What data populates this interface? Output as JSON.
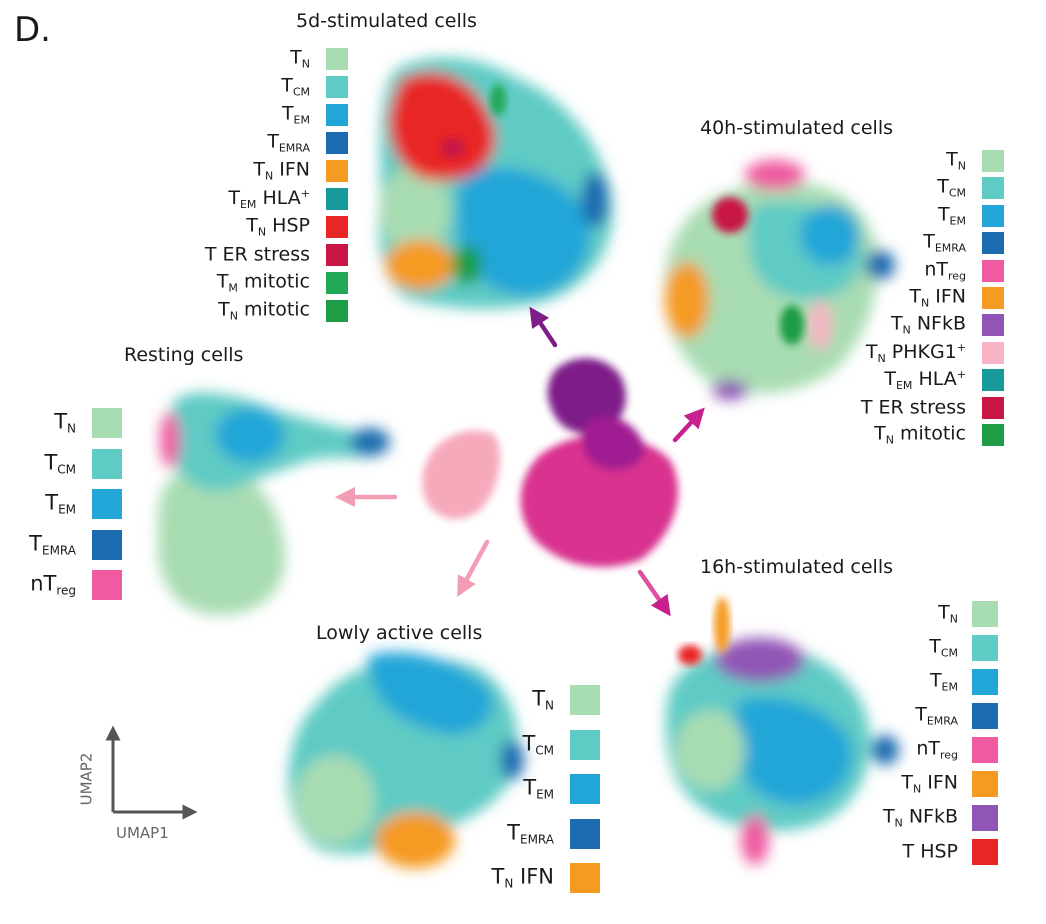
{
  "panel_label": "D.",
  "colors": {
    "TN": "#a8dcb2",
    "TCM": "#5ecbc4",
    "TEM": "#22a6d8",
    "TEMRA": "#1d6cb1",
    "nTreg": "#ef5aa0",
    "TN_IFN": "#f59a23",
    "TEM_HLA": "#179a9c",
    "TN_HSP": "#e82626",
    "ER_stress": "#c81544",
    "TM_mitotic": "#22a958",
    "TN_mitotic": "#1f9c47",
    "TN_NFkB": "#9155b5",
    "TN_PHKG1": "#f7b3c3",
    "center_light": "#f6a9bb",
    "center_mid": "#d9338f",
    "center_dark": "#7e1f88",
    "arrow_pink": "#f29db4",
    "arrow_magenta": "#c8208c",
    "arrow_purple": "#7e1f88",
    "axis": "#555555"
  },
  "panels": {
    "stim5d": {
      "title": "5d-stimulated cells",
      "legend": [
        {
          "base": "T",
          "sub": "N",
          "sup": "",
          "suffix": "",
          "color_key": "TN"
        },
        {
          "base": "T",
          "sub": "CM",
          "sup": "",
          "suffix": "",
          "color_key": "TCM"
        },
        {
          "base": "T",
          "sub": "EM",
          "sup": "",
          "suffix": "",
          "color_key": "TEM"
        },
        {
          "base": "T",
          "sub": "EMRA",
          "sup": "",
          "suffix": "",
          "color_key": "TEMRA"
        },
        {
          "base": "T",
          "sub": "N",
          "sup": "",
          "suffix": " IFN",
          "color_key": "TN_IFN"
        },
        {
          "base": "T",
          "sub": "EM",
          "sup": "+",
          "suffix": " HLA",
          "color_key": "TEM_HLA"
        },
        {
          "base": "T",
          "sub": "N",
          "sup": "",
          "suffix": " HSP",
          "color_key": "TN_HSP"
        },
        {
          "base": "T ER stress",
          "sub": "",
          "sup": "",
          "suffix": "",
          "color_key": "ER_stress"
        },
        {
          "base": "T",
          "sub": "M",
          "sup": "",
          "suffix": " mitotic",
          "color_key": "TM_mitotic"
        },
        {
          "base": "T",
          "sub": "N",
          "sup": "",
          "suffix": " mitotic",
          "color_key": "TN_mitotic"
        }
      ]
    },
    "stim40h": {
      "title": "40h-stimulated cells",
      "legend": [
        {
          "base": "T",
          "sub": "N",
          "sup": "",
          "suffix": "",
          "color_key": "TN"
        },
        {
          "base": "T",
          "sub": "CM",
          "sup": "",
          "suffix": "",
          "color_key": "TCM"
        },
        {
          "base": "T",
          "sub": "EM",
          "sup": "",
          "suffix": "",
          "color_key": "TEM"
        },
        {
          "base": "T",
          "sub": "EMRA",
          "sup": "",
          "suffix": "",
          "color_key": "TEMRA"
        },
        {
          "base": "nT",
          "sub": "reg",
          "sup": "",
          "suffix": "",
          "color_key": "nTreg"
        },
        {
          "base": "T",
          "sub": "N",
          "sup": "",
          "suffix": " IFN",
          "color_key": "TN_IFN"
        },
        {
          "base": "T",
          "sub": "N",
          "sup": "",
          "suffix": " NFkB",
          "color_key": "TN_NFkB"
        },
        {
          "base": "T",
          "sub": "N",
          "sup": "+",
          "suffix": " PHKG1",
          "color_key": "TN_PHKG1"
        },
        {
          "base": "T",
          "sub": "EM",
          "sup": "+",
          "suffix": " HLA",
          "color_key": "TEM_HLA"
        },
        {
          "base": "T ER stress",
          "sub": "",
          "sup": "",
          "suffix": "",
          "color_key": "ER_stress"
        },
        {
          "base": "T",
          "sub": "N",
          "sup": "",
          "suffix": " mitotic",
          "color_key": "TN_mitotic"
        }
      ]
    },
    "resting": {
      "title": "Resting cells",
      "legend": [
        {
          "base": "T",
          "sub": "N",
          "sup": "",
          "suffix": "",
          "color_key": "TN"
        },
        {
          "base": "T",
          "sub": "CM",
          "sup": "",
          "suffix": "",
          "color_key": "TCM"
        },
        {
          "base": "T",
          "sub": "EM",
          "sup": "",
          "suffix": "",
          "color_key": "TEM"
        },
        {
          "base": "T",
          "sub": "EMRA",
          "sup": "",
          "suffix": "",
          "color_key": "TEMRA"
        },
        {
          "base": "nT",
          "sub": "reg",
          "sup": "",
          "suffix": "",
          "color_key": "nTreg"
        }
      ]
    },
    "lowly": {
      "title": "Lowly active cells",
      "legend": [
        {
          "base": "T",
          "sub": "N",
          "sup": "",
          "suffix": "",
          "color_key": "TN"
        },
        {
          "base": "T",
          "sub": "CM",
          "sup": "",
          "suffix": "",
          "color_key": "TCM"
        },
        {
          "base": "T",
          "sub": "EM",
          "sup": "",
          "suffix": "",
          "color_key": "TEM"
        },
        {
          "base": "T",
          "sub": "EMRA",
          "sup": "",
          "suffix": "",
          "color_key": "TEMRA"
        },
        {
          "base": "T",
          "sub": "N",
          "sup": "",
          "suffix": " IFN",
          "color_key": "TN_IFN"
        }
      ]
    },
    "stim16h": {
      "title": "16h-stimulated cells",
      "legend": [
        {
          "base": "T",
          "sub": "N",
          "sup": "",
          "suffix": "",
          "color_key": "TN"
        },
        {
          "base": "T",
          "sub": "CM",
          "sup": "",
          "suffix": "",
          "color_key": "TCM"
        },
        {
          "base": "T",
          "sub": "EM",
          "sup": "",
          "suffix": "",
          "color_key": "TEM"
        },
        {
          "base": "T",
          "sub": "EMRA",
          "sup": "",
          "suffix": "",
          "color_key": "TEMRA"
        },
        {
          "base": "nT",
          "sub": "reg",
          "sup": "",
          "suffix": "",
          "color_key": "nTreg"
        },
        {
          "base": "T",
          "sub": "N",
          "sup": "",
          "suffix": " IFN",
          "color_key": "TN_IFN"
        },
        {
          "base": "T",
          "sub": "N",
          "sup": "",
          "suffix": " NFkB",
          "color_key": "TN_NFkB"
        },
        {
          "base": "T HSP",
          "sub": "",
          "sup": "",
          "suffix": "",
          "color_key": "TN_HSP"
        }
      ]
    }
  },
  "axes": {
    "x_label": "UMAP1",
    "y_label": "UMAP2"
  }
}
